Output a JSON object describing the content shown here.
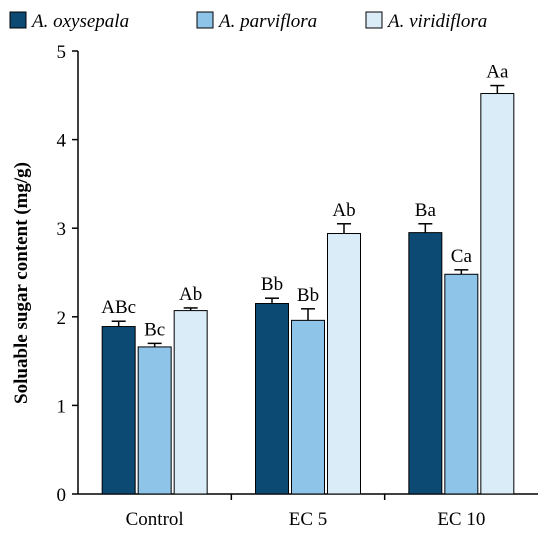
{
  "chart_data": {
    "type": "bar",
    "title": "",
    "xlabel": "",
    "ylabel": "Soluable sugar content (mg/g)",
    "ylim": [
      0,
      5
    ],
    "yticks": [
      "0",
      "1",
      "2",
      "3",
      "4",
      "5"
    ],
    "grid": false,
    "legend_position": "top",
    "categories": [
      "Control",
      "EC 5",
      "EC 10"
    ],
    "series": [
      {
        "name": "A. oxysepala",
        "color": "#0c4a73",
        "values": [
          1.89,
          2.15,
          2.95
        ],
        "errors": [
          0.06,
          0.06,
          0.1
        ],
        "labels": [
          "ABc",
          "Bb",
          "Ba"
        ]
      },
      {
        "name": "A. parviflora",
        "color": "#8ec4e8",
        "values": [
          1.66,
          1.96,
          2.48
        ],
        "errors": [
          0.04,
          0.13,
          0.05
        ],
        "labels": [
          "Bc",
          "Bb",
          "Ca"
        ]
      },
      {
        "name": "A. viridiflora",
        "color": "#d9ecf8",
        "values": [
          2.07,
          2.94,
          4.52
        ],
        "errors": [
          0.03,
          0.11,
          0.09
        ],
        "labels": [
          "Ab",
          "Ab",
          "Aa"
        ]
      }
    ]
  }
}
